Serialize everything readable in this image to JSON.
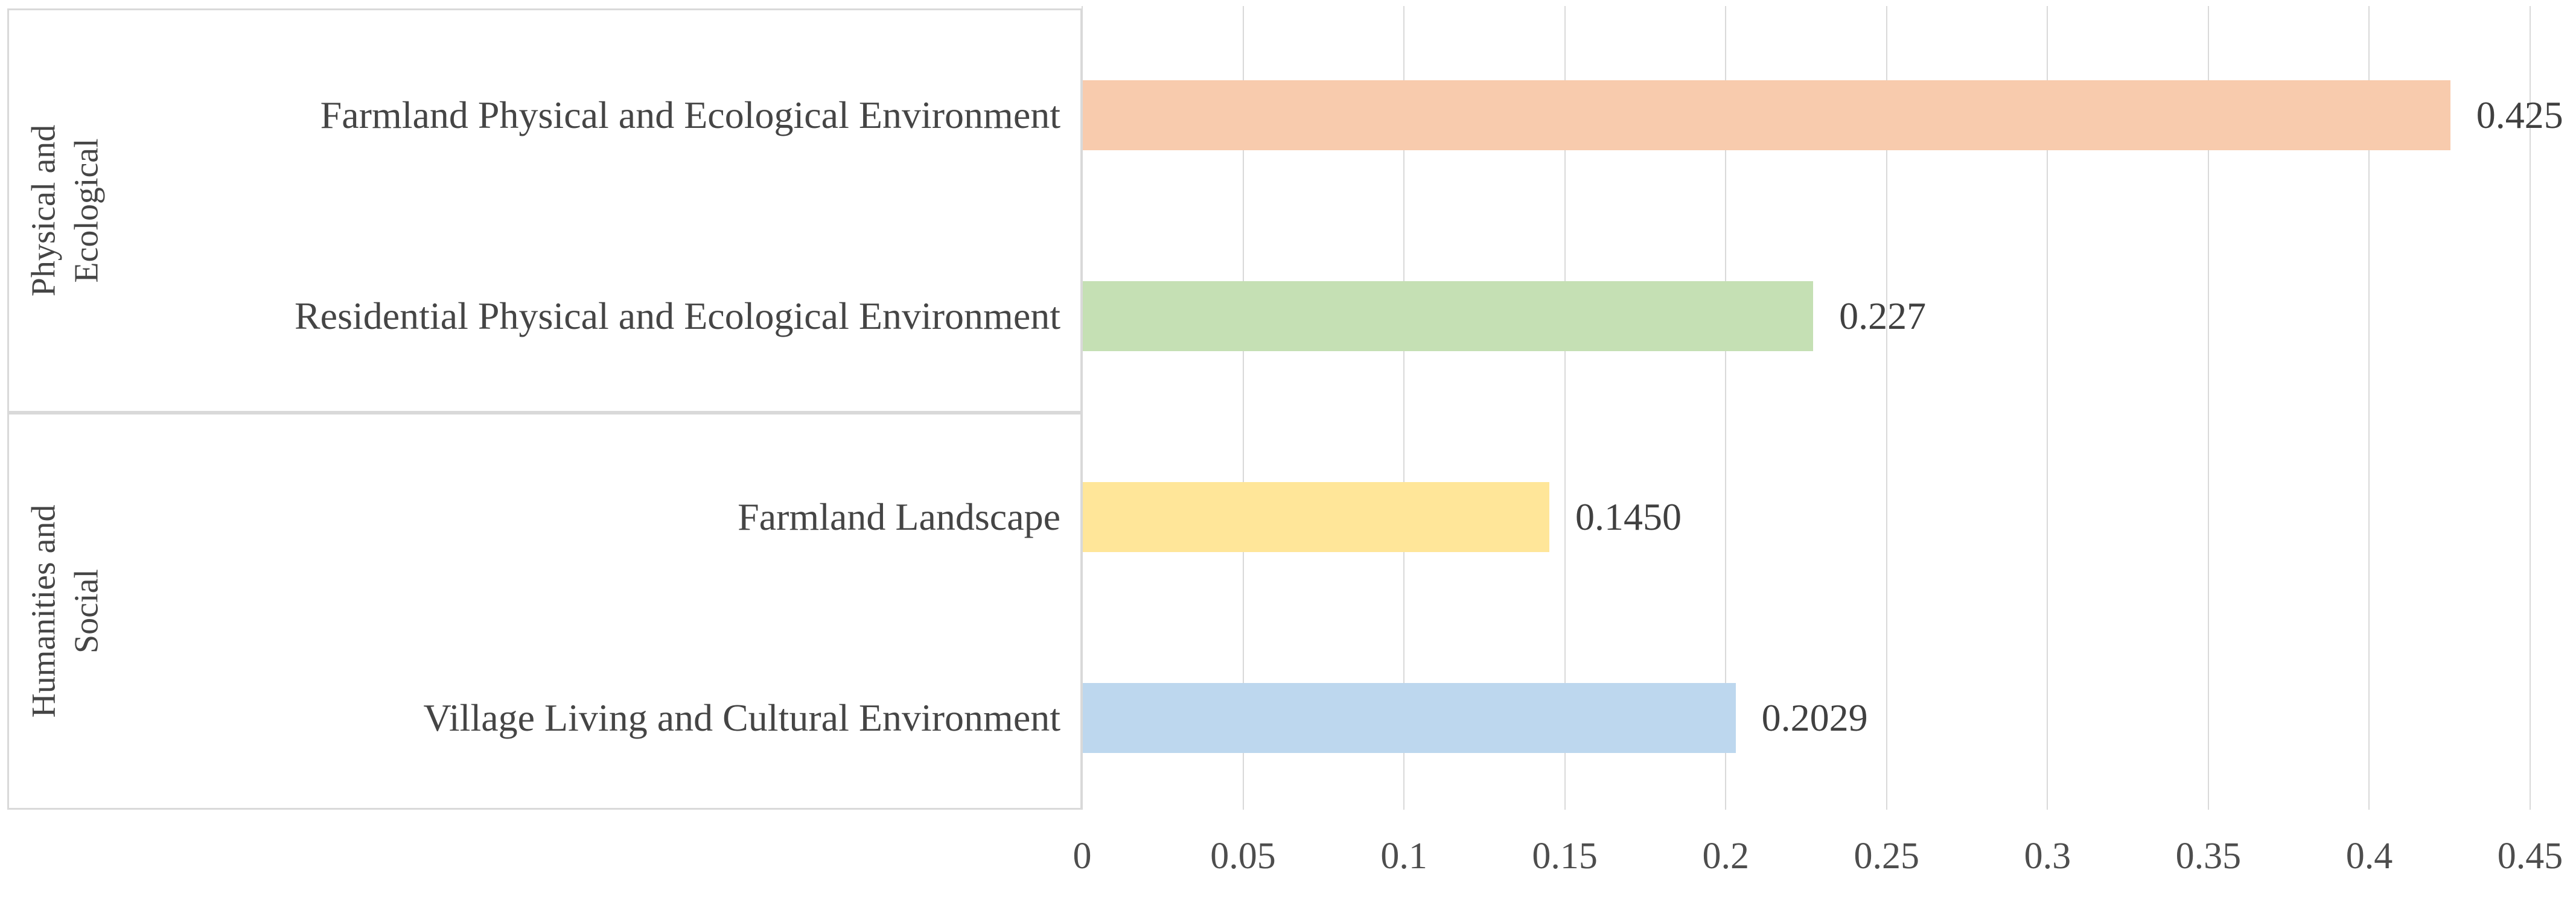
{
  "chart_data": {
    "type": "bar",
    "orientation": "horizontal",
    "title": "",
    "xlabel": "",
    "ylabel": "",
    "grid": true,
    "xlim": [
      0,
      0.45
    ],
    "x_ticks": [
      0,
      0.05,
      0.1,
      0.15,
      0.2,
      0.25,
      0.3,
      0.35,
      0.4,
      0.45
    ],
    "x_tick_labels": [
      "0",
      "0.05",
      "0.1",
      "0.15",
      "0.2",
      "0.25",
      "0.3",
      "0.35",
      "0.4",
      "0.45"
    ],
    "categories": [
      "Farmland Physical and Ecological Environment",
      "Residential Physical and Ecological Environment",
      "Farmland Landscape",
      "Village Living and Cultural Environment"
    ],
    "values": [
      0.425,
      0.227,
      0.145,
      0.2029
    ],
    "value_labels": [
      "0.425",
      "0.227",
      "0.1450",
      "0.2029"
    ],
    "bar_colors": [
      "#F8CBAD",
      "#C5E0B4",
      "#FFE699",
      "#BDD7EE"
    ],
    "groups": [
      {
        "label_lines": [
          "Physical and",
          "Ecological"
        ],
        "rows": [
          0,
          1
        ]
      },
      {
        "label_lines": [
          "Humanities and",
          "Social"
        ],
        "rows": [
          2,
          3
        ]
      }
    ],
    "legend": null
  },
  "style": {
    "grid_color": "#D9D9D9",
    "box_border_color": "#D9D9D9",
    "text_color": "#454545",
    "value_text_color": "#404040",
    "tick_text_color": "#4d4d4d",
    "background": "#ffffff"
  }
}
